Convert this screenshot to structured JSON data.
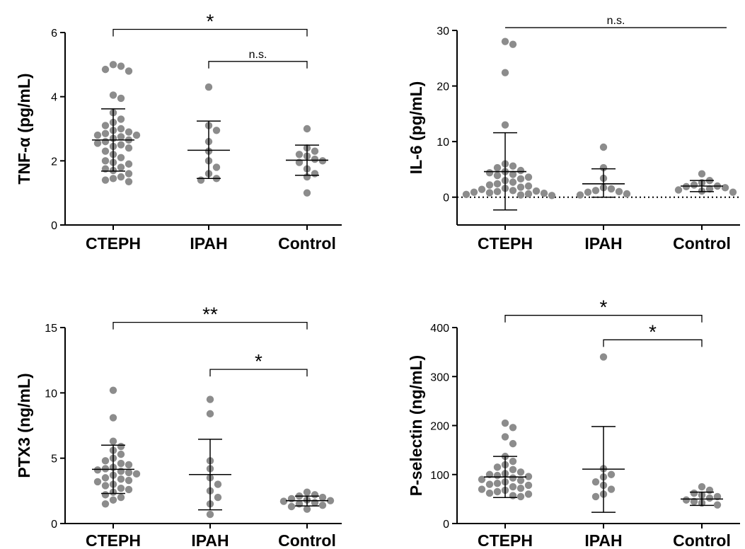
{
  "figure": {
    "colors": {
      "point": "#8c8c8c",
      "errorbar": "#000000",
      "mean_line": "#000000"
    }
  },
  "chart_data": [
    {
      "type": "scatter",
      "ylabel": "TNF-α (pg/mL)",
      "categories": [
        "CTEPH",
        "IPAH",
        "Control"
      ],
      "ylim": [
        0,
        6
      ],
      "yticks": [
        0,
        2,
        4,
        6
      ],
      "grid": false,
      "baseline_dotted": false,
      "groups": [
        {
          "name": "CTEPH",
          "mean": 2.65,
          "sd_low": 1.68,
          "sd_high": 3.62,
          "values": [
            5.0,
            4.95,
            4.85,
            4.8,
            4.05,
            3.95,
            3.5,
            3.3,
            3.2,
            3.1,
            3.0,
            2.95,
            2.9,
            2.85,
            2.8,
            2.8,
            2.75,
            2.7,
            2.65,
            2.6,
            2.55,
            2.5,
            2.45,
            2.4,
            2.3,
            2.2,
            2.1,
            2.0,
            1.95,
            1.9,
            1.8,
            1.75,
            1.7,
            1.6,
            1.5,
            1.45,
            1.4,
            1.35
          ]
        },
        {
          "name": "IPAH",
          "mean": 2.33,
          "sd_low": 1.45,
          "sd_high": 3.24,
          "values": [
            4.3,
            3.1,
            2.95,
            2.6,
            2.3,
            2.0,
            1.8,
            1.6,
            1.45,
            1.4
          ]
        },
        {
          "name": "Control",
          "mean": 2.02,
          "sd_low": 1.55,
          "sd_high": 2.49,
          "values": [
            3.0,
            2.4,
            2.3,
            2.2,
            2.15,
            2.05,
            2.0,
            1.95,
            1.75,
            1.6,
            1.5,
            1.0
          ]
        }
      ],
      "brackets": [
        {
          "from": "CTEPH",
          "to": "Control",
          "label": "*",
          "level": 6.1
        },
        {
          "from": "IPAH",
          "to": "Control",
          "label": "n.s.",
          "level": 5.1
        }
      ]
    },
    {
      "type": "scatter",
      "ylabel": "IL-6 (pg/mL)",
      "categories": [
        "CTEPH",
        "IPAH",
        "Control"
      ],
      "ylim": [
        -5,
        30
      ],
      "yticks": [
        0,
        10,
        20,
        30
      ],
      "grid": false,
      "baseline_dotted": true,
      "groups": [
        {
          "name": "CTEPH",
          "mean": 4.6,
          "sd_low": -2.3,
          "sd_high": 11.6,
          "values": [
            28.0,
            27.5,
            22.4,
            13.0,
            6.0,
            5.6,
            5.3,
            4.8,
            4.6,
            4.4,
            4.1,
            3.9,
            3.6,
            3.3,
            3.0,
            2.7,
            2.4,
            2.2,
            2.0,
            1.8,
            1.6,
            1.4,
            1.2,
            1.1,
            1.0,
            0.9,
            0.8,
            0.7,
            0.6,
            0.5,
            0.4,
            0.3
          ]
        },
        {
          "name": "IPAH",
          "mean": 2.4,
          "sd_low": 0.0,
          "sd_high": 5.1,
          "values": [
            9.0,
            5.3,
            3.4,
            1.7,
            1.5,
            1.2,
            1.0,
            0.9,
            0.6,
            0.4
          ]
        },
        {
          "name": "Control",
          "mean": 2.0,
          "sd_low": 1.0,
          "sd_high": 3.0,
          "values": [
            4.2,
            3.0,
            2.6,
            2.2,
            2.0,
            1.9,
            1.7,
            1.5,
            1.3,
            1.1,
            0.9
          ]
        }
      ],
      "brackets": [
        {
          "from": "CTEPH",
          "to": "Control",
          "label": "n.s.",
          "level": 30.5,
          "flat": true
        }
      ]
    },
    {
      "type": "scatter",
      "ylabel": "PTX3 (ng/mL)",
      "categories": [
        "CTEPH",
        "IPAH",
        "Control"
      ],
      "ylim": [
        0,
        15
      ],
      "yticks": [
        0,
        5,
        10,
        15
      ],
      "grid": false,
      "baseline_dotted": false,
      "groups": [
        {
          "name": "CTEPH",
          "mean": 4.15,
          "sd_low": 2.3,
          "sd_high": 6.0,
          "values": [
            10.2,
            8.1,
            6.3,
            5.9,
            5.6,
            5.3,
            5.0,
            4.8,
            4.6,
            4.5,
            4.3,
            4.2,
            4.1,
            4.0,
            3.9,
            3.8,
            3.7,
            3.5,
            3.4,
            3.3,
            3.2,
            3.0,
            2.9,
            2.7,
            2.6,
            2.4,
            2.2,
            2.0,
            1.8,
            1.5
          ]
        },
        {
          "name": "IPAH",
          "mean": 3.75,
          "sd_low": 1.05,
          "sd_high": 6.45,
          "values": [
            9.5,
            8.4,
            4.8,
            4.2,
            3.5,
            3.0,
            2.5,
            2.0,
            1.5,
            0.7
          ]
        },
        {
          "name": "Control",
          "mean": 1.75,
          "sd_low": 1.35,
          "sd_high": 2.1,
          "values": [
            2.4,
            2.2,
            2.1,
            2.0,
            1.9,
            1.8,
            1.75,
            1.7,
            1.6,
            1.5,
            1.4,
            1.3,
            1.1
          ]
        }
      ],
      "brackets": [
        {
          "from": "CTEPH",
          "to": "Control",
          "label": "**",
          "level": 15.4
        },
        {
          "from": "IPAH",
          "to": "Control",
          "label": "*",
          "level": 11.8
        }
      ]
    },
    {
      "type": "scatter",
      "ylabel": "P-selectin  (ng/mL)",
      "categories": [
        "CTEPH",
        "IPAH",
        "Control"
      ],
      "ylim": [
        0,
        400
      ],
      "yticks": [
        0,
        100,
        200,
        300,
        400
      ],
      "grid": false,
      "baseline_dotted": false,
      "groups": [
        {
          "name": "CTEPH",
          "mean": 95,
          "sd_low": 53,
          "sd_high": 137,
          "values": [
            205,
            196,
            177,
            163,
            137,
            127,
            120,
            115,
            110,
            105,
            102,
            100,
            98,
            96,
            93,
            90,
            88,
            85,
            82,
            80,
            78,
            75,
            72,
            70,
            68,
            65,
            62,
            60,
            57,
            55
          ]
        },
        {
          "name": "IPAH",
          "mean": 111,
          "sd_low": 23,
          "sd_high": 198,
          "values": [
            340,
            112,
            100,
            95,
            85,
            78,
            70,
            60,
            55
          ]
        },
        {
          "name": "Control",
          "mean": 50,
          "sd_low": 37,
          "sd_high": 64,
          "values": [
            75,
            68,
            62,
            58,
            55,
            52,
            48,
            45,
            42,
            38
          ]
        }
      ],
      "brackets": [
        {
          "from": "CTEPH",
          "to": "Control",
          "label": "*",
          "level": 425
        },
        {
          "from": "IPAH",
          "to": "Control",
          "label": "*",
          "level": 375
        }
      ]
    }
  ]
}
